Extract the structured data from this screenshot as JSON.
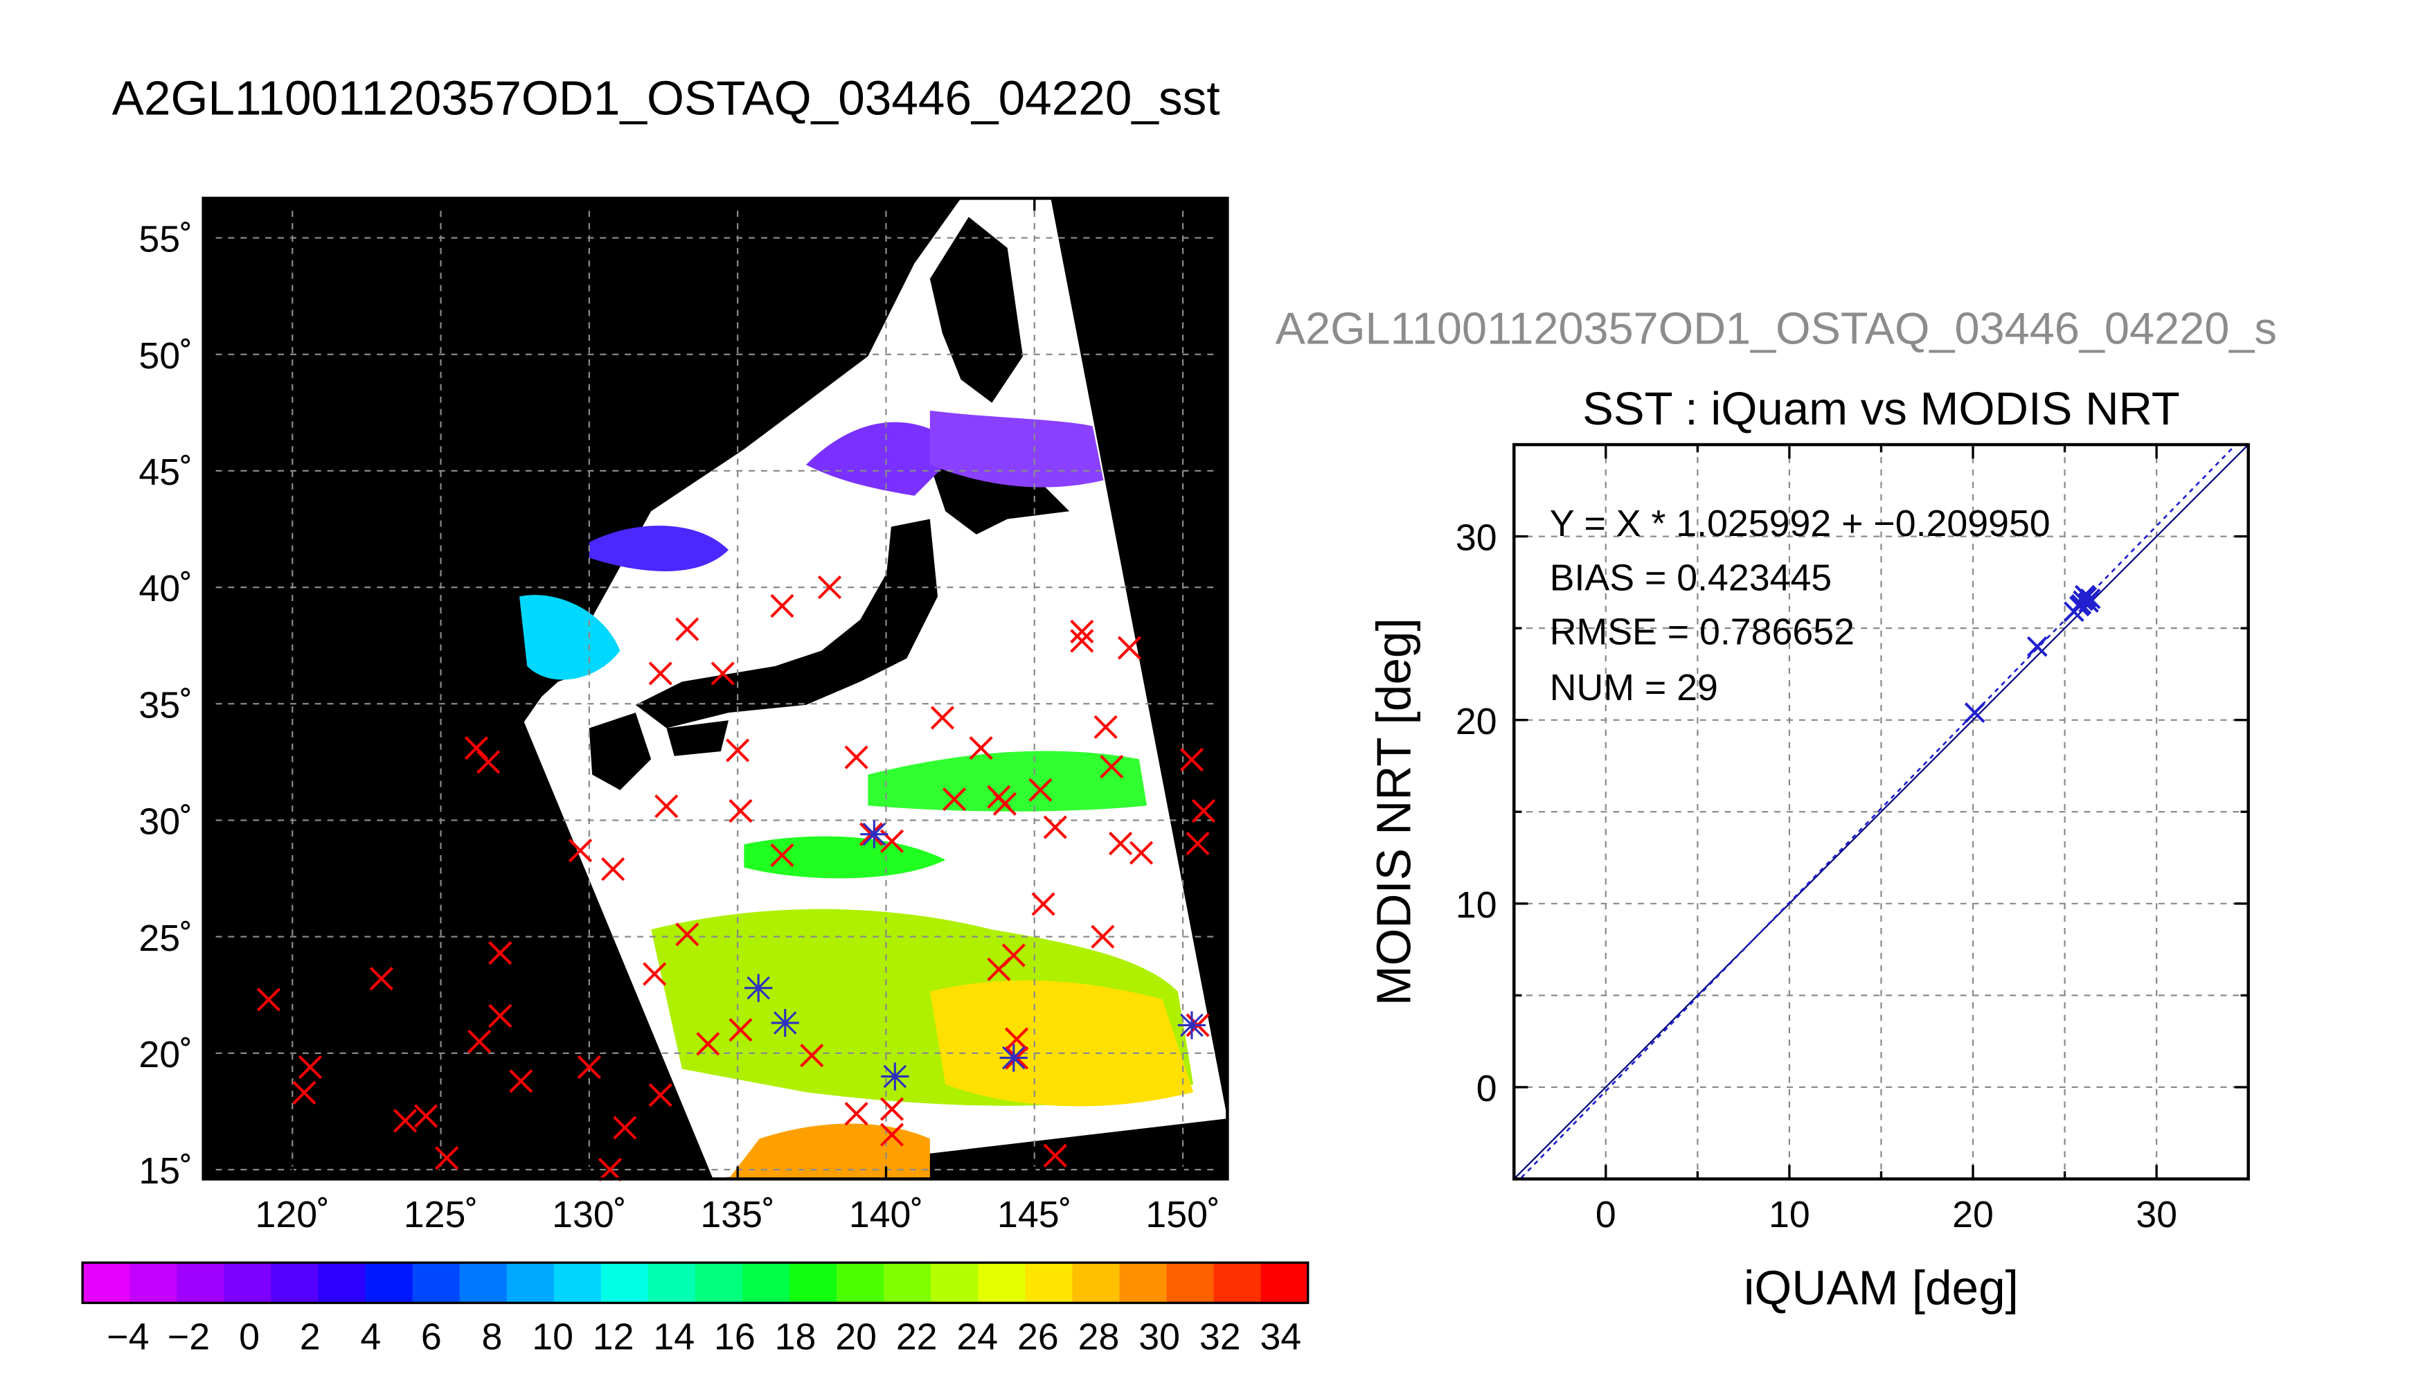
{
  "map_title": "A2GL11001120357OD1_OSTAQ_03446_04220_sst",
  "scatter_overtitle": "A2GL11001120357OD1_OSTAQ_03446_04220_s",
  "colorbar": {
    "tick_labels": [
      "−4",
      "−2",
      "0",
      "2",
      "4",
      "6",
      "8",
      "10",
      "12",
      "14",
      "16",
      "18",
      "20",
      "22",
      "24",
      "26",
      "28",
      "30",
      "32",
      "34"
    ],
    "colors": [
      "#e600ff",
      "#c400ff",
      "#a000ff",
      "#7c00ff",
      "#5400ff",
      "#2b00ff",
      "#0018ff",
      "#0048ff",
      "#0078ff",
      "#00a8ff",
      "#00d4ff",
      "#00ffe4",
      "#00ffb0",
      "#00ff7c",
      "#00ff48",
      "#10ff10",
      "#4cff00",
      "#80ff00",
      "#b4ff00",
      "#e4ff00",
      "#ffe600",
      "#ffc000",
      "#ff9000",
      "#ff6000",
      "#ff3000",
      "#ff0000"
    ]
  },
  "chart_data": [
    {
      "type": "map",
      "title": "A2GL11001120357OD1_OSTAQ_03446_04220_sst",
      "lon_range": [
        117,
        151.5
      ],
      "lat_range": [
        14.6,
        56.7
      ],
      "x_tick_values": [
        120,
        125,
        130,
        135,
        140,
        145,
        150
      ],
      "x_tick_labels": [
        "120˚",
        "125˚",
        "130˚",
        "135˚",
        "140˚",
        "145˚",
        "150˚"
      ],
      "y_tick_values": [
        15,
        20,
        25,
        30,
        35,
        40,
        45,
        50,
        55
      ],
      "y_tick_labels": [
        "15˚",
        "20˚",
        "25˚",
        "30˚",
        "35˚",
        "40˚",
        "45˚",
        "50˚",
        "55˚"
      ],
      "grid": true,
      "colors": {
        "marker": "#ff0000",
        "matched_marker": "#3030c0",
        "land": "#000000",
        "no_data": "#ffffff"
      },
      "markers": [
        [
          119.2,
          22.3
        ],
        [
          120.4,
          18.3
        ],
        [
          120.6,
          19.4
        ],
        [
          123.0,
          23.2
        ],
        [
          123.8,
          17.1
        ],
        [
          124.5,
          17.3
        ],
        [
          125.2,
          15.5
        ],
        [
          126.2,
          33.1
        ],
        [
          126.6,
          32.5
        ],
        [
          126.3,
          20.5
        ],
        [
          127.0,
          24.3
        ],
        [
          127.0,
          21.6
        ],
        [
          127.7,
          18.8
        ],
        [
          129.7,
          28.7
        ],
        [
          130.0,
          19.4
        ],
        [
          130.7,
          15.0
        ],
        [
          130.8,
          27.9
        ],
        [
          131.2,
          16.8
        ],
        [
          132.2,
          23.4
        ],
        [
          132.4,
          18.2
        ],
        [
          132.6,
          30.6
        ],
        [
          132.4,
          36.3
        ],
        [
          133.3,
          38.2
        ],
        [
          133.3,
          25.1
        ],
        [
          134.0,
          20.4
        ],
        [
          134.5,
          36.3
        ],
        [
          135.0,
          33.0
        ],
        [
          135.1,
          30.4
        ],
        [
          135.1,
          21.0
        ],
        [
          136.5,
          28.5
        ],
        [
          136.5,
          39.2
        ],
        [
          137.5,
          19.9
        ],
        [
          138.1,
          40.0
        ],
        [
          139.0,
          17.4
        ],
        [
          139.0,
          32.7
        ],
        [
          139.5,
          29.4
        ],
        [
          140.2,
          29.1
        ],
        [
          140.2,
          17.6
        ],
        [
          140.2,
          16.5
        ],
        [
          141.9,
          34.4
        ],
        [
          142.3,
          30.9
        ],
        [
          143.2,
          33.1
        ],
        [
          143.8,
          31.0
        ],
        [
          143.8,
          23.6
        ],
        [
          144.0,
          30.7
        ],
        [
          144.3,
          24.2
        ],
        [
          144.4,
          20.6
        ],
        [
          144.4,
          19.8
        ],
        [
          145.2,
          31.3
        ],
        [
          145.3,
          26.4
        ],
        [
          145.7,
          29.7
        ],
        [
          145.7,
          15.6
        ],
        [
          146.6,
          38.1
        ],
        [
          146.6,
          37.7
        ],
        [
          147.3,
          25.0
        ],
        [
          147.4,
          34.0
        ],
        [
          147.6,
          32.3
        ],
        [
          147.9,
          29.0
        ],
        [
          148.2,
          37.4
        ],
        [
          148.6,
          28.6
        ],
        [
          150.3,
          32.6
        ],
        [
          150.5,
          29.0
        ],
        [
          150.7,
          30.4
        ],
        [
          150.5,
          21.2
        ]
      ],
      "matched_markers": [
        [
          135.7,
          22.8
        ],
        [
          136.6,
          21.3
        ],
        [
          139.6,
          29.4
        ],
        [
          140.3,
          19.0
        ],
        [
          144.3,
          19.8
        ],
        [
          150.3,
          21.2
        ]
      ]
    },
    {
      "type": "scatter",
      "title": "SST : iQuam vs MODIS NRT",
      "xlabel": "iQUAM [deg]",
      "ylabel": "MODIS NRT [deg]",
      "xlim": [
        -5,
        35
      ],
      "ylim": [
        -5,
        35
      ],
      "x_ticks": [
        0,
        10,
        20,
        30
      ],
      "y_ticks": [
        0,
        10,
        20,
        30
      ],
      "grid": true,
      "annotations": [
        "Y = X * 1.025992 + −0.209950",
        "BIAS = 0.423445",
        "RMSE = 0.786652",
        "NUM = 29"
      ],
      "fit": {
        "slope": 1.025992,
        "intercept": -0.20995
      },
      "points": [
        {
          "x": 20.1,
          "y": 20.4
        },
        {
          "x": 23.5,
          "y": 24.0
        },
        {
          "x": 25.5,
          "y": 25.9
        },
        {
          "x": 25.8,
          "y": 26.2
        },
        {
          "x": 26.0,
          "y": 26.5
        },
        {
          "x": 26.2,
          "y": 26.7
        },
        {
          "x": 26.3,
          "y": 26.4
        },
        {
          "x": 26.1,
          "y": 26.8
        },
        {
          "x": 26.4,
          "y": 26.6
        },
        {
          "x": 25.9,
          "y": 26.3
        }
      ],
      "colors": {
        "points": "#2020d0",
        "fit_line": "#2020d0",
        "identity_line": "#000080"
      }
    }
  ]
}
